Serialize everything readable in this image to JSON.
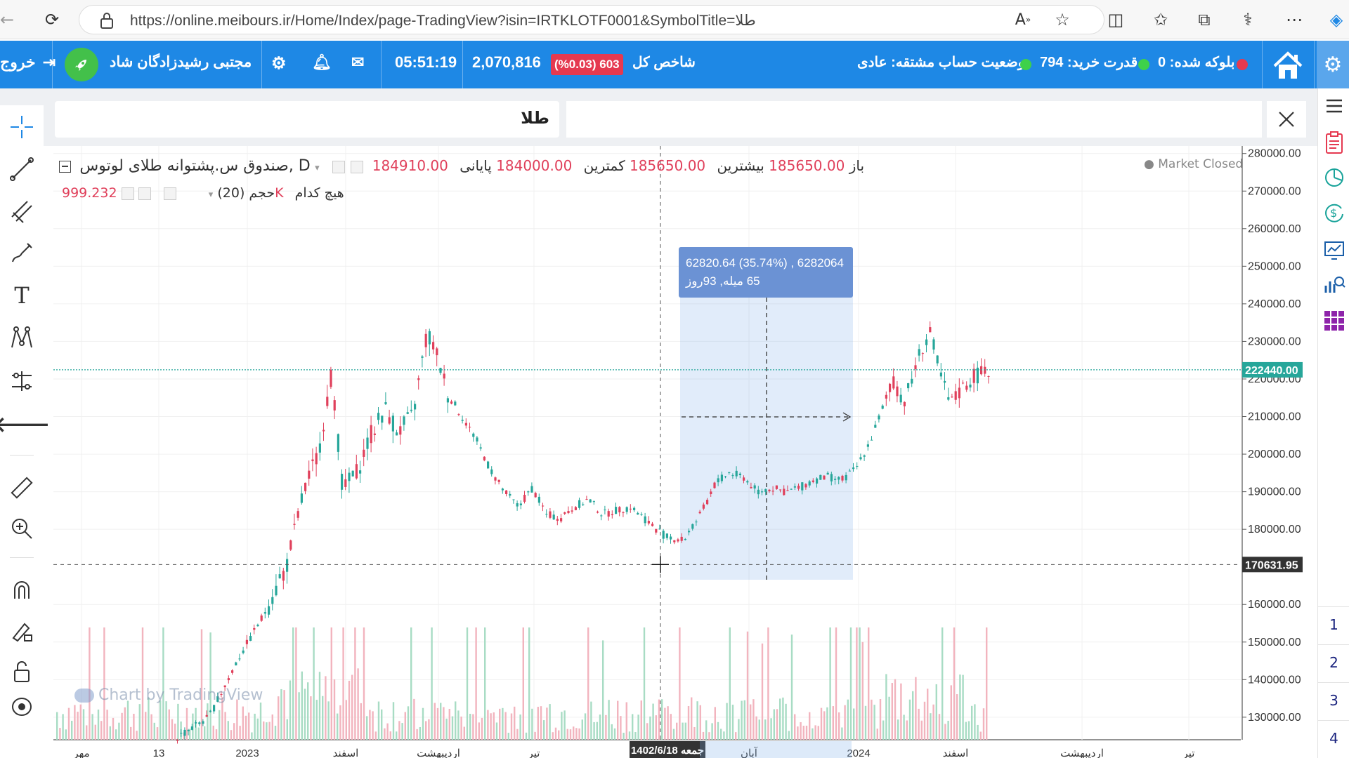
{
  "browser": {
    "url": "https://online.meibours.ir/Home/Index/page-TradingView?isin=IRTKLOTF0001&SymbolTitle=طلا"
  },
  "header": {
    "logout": "خروج",
    "user_name": "مجتبی رشیدزادگان شاد",
    "time": "05:51:19",
    "index_value": "2,070,816",
    "index_change": "(%0.03) 603",
    "index_label": "شاخص کل",
    "account_status": "وضعیت حساب مشتقه: عادی",
    "buy_power": "قدرت خرید: 794",
    "blocked": "بلوکه شده: 0"
  },
  "tabs": {
    "active_tab": "طلا"
  },
  "legend": {
    "symbol": "صندوق س.پشتوانه طلای لوتوس, D",
    "open_label": "باز",
    "open_value": "185650.00",
    "high_label": "بیشترین",
    "high_value": "185650.00",
    "low_label": "کمترین",
    "low_value": "184000.00",
    "close_label": "پایانی",
    "close_value": "184910.00",
    "volume_label": "حجم (20)",
    "volume_none": "هیچ کدام",
    "volume_value": "999.232K",
    "market_status": "Market Closed"
  },
  "tooltip": {
    "line1": "62820.64 (35.74%) , 6282064",
    "line2": "65 میله, 93روز"
  },
  "watermark": "Chart by TradingView",
  "chart_data": {
    "type": "candlestick",
    "y_ticks": [
      "280000.00",
      "270000.00",
      "260000.00",
      "250000.00",
      "240000.00",
      "230000.00",
      "220000.00",
      "210000.00",
      "200000.00",
      "190000.00",
      "180000.00",
      "160000.00",
      "150000.00",
      "140000.00",
      "130000.00"
    ],
    "ylim": [
      124000,
      282000
    ],
    "price_line": "222440.00",
    "crosshair_price": "170631.95",
    "crosshair_date": "جمعه 1402/6/18",
    "x_ticks": [
      "مهر",
      "13",
      "2023",
      "اسفند",
      "اردیبهشت",
      "تیر",
      "آبان",
      "2024",
      "اسفند",
      "اردیبهشت",
      "تیر"
    ]
  },
  "sidebar_right": {
    "layouts": [
      "1",
      "2",
      "3",
      "4"
    ]
  }
}
